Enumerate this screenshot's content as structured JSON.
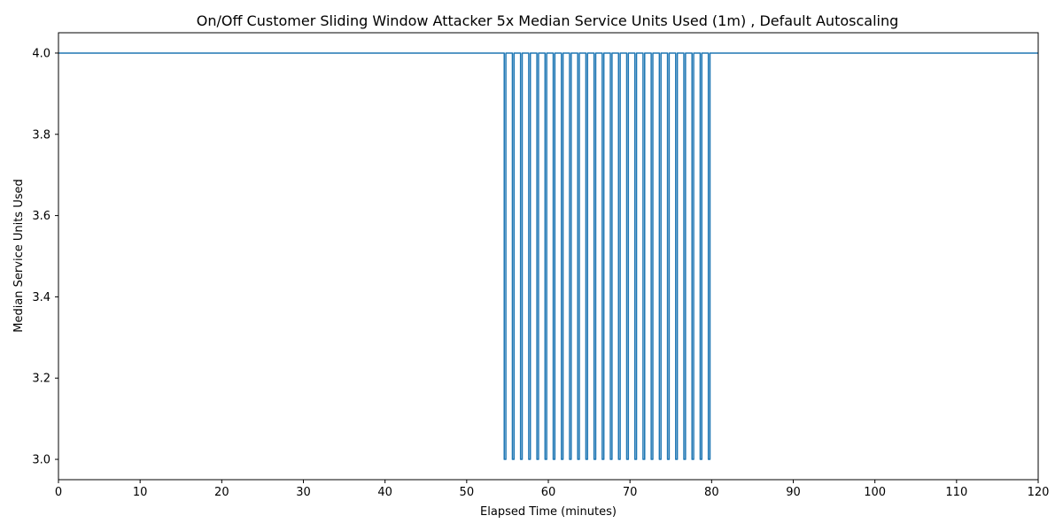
{
  "chart_data": {
    "type": "line",
    "title": "On/Off Customer Sliding Window Attacker 5x Median Service Units Used (1m) , Default Autoscaling",
    "xlabel": "Elapsed Time (minutes)",
    "ylabel": "Median Service Units Used",
    "xlim": [
      0,
      120
    ],
    "ylim": [
      2.95,
      4.05
    ],
    "xticks": [
      0,
      10,
      20,
      30,
      40,
      50,
      60,
      70,
      80,
      90,
      100,
      110,
      120
    ],
    "yticks": [
      3.0,
      3.2,
      3.4,
      3.6,
      3.8,
      4.0
    ],
    "ytick_labels": [
      "3.0",
      "3.2",
      "3.4",
      "3.6",
      "3.8",
      "4.0"
    ],
    "grid": false,
    "legend": "none",
    "series_color": "#1f77b4",
    "series": [
      {
        "x": [
          0,
          54.6,
          54.6,
          54.8,
          54.8,
          55.6,
          55.6,
          55.8,
          55.8,
          56.6,
          56.6,
          56.8,
          56.8,
          57.6,
          57.6,
          57.8,
          57.8,
          58.6,
          58.6,
          58.8,
          58.8,
          59.6,
          59.6,
          59.8,
          59.8,
          60.6,
          60.6,
          60.8,
          60.8,
          61.6,
          61.6,
          61.8,
          61.8,
          62.6,
          62.6,
          62.8,
          62.8,
          63.6,
          63.6,
          63.8,
          63.8,
          64.6,
          64.6,
          64.8,
          64.8,
          65.6,
          65.6,
          65.8,
          65.8,
          66.6,
          66.6,
          66.8,
          66.8,
          67.6,
          67.6,
          67.8,
          67.8,
          68.6,
          68.6,
          68.8,
          68.8,
          69.6,
          69.6,
          69.8,
          69.8,
          70.6,
          70.6,
          70.8,
          70.8,
          71.6,
          71.6,
          71.8,
          71.8,
          72.6,
          72.6,
          72.8,
          72.8,
          73.6,
          73.6,
          73.8,
          73.8,
          74.6,
          74.6,
          74.8,
          74.8,
          75.6,
          75.6,
          75.8,
          75.8,
          76.6,
          76.6,
          76.8,
          76.8,
          77.6,
          77.6,
          77.8,
          77.8,
          78.6,
          78.6,
          78.8,
          78.8,
          79.6,
          79.6,
          79.8,
          79.8,
          120
        ],
        "y": [
          4.0,
          4.0,
          3.0,
          3.0,
          4.0,
          4.0,
          3.0,
          3.0,
          4.0,
          4.0,
          3.0,
          3.0,
          4.0,
          4.0,
          3.0,
          3.0,
          4.0,
          4.0,
          3.0,
          3.0,
          4.0,
          4.0,
          3.0,
          3.0,
          4.0,
          4.0,
          3.0,
          3.0,
          4.0,
          4.0,
          3.0,
          3.0,
          4.0,
          4.0,
          3.0,
          3.0,
          4.0,
          4.0,
          3.0,
          3.0,
          4.0,
          4.0,
          3.0,
          3.0,
          4.0,
          4.0,
          3.0,
          3.0,
          4.0,
          4.0,
          3.0,
          3.0,
          4.0,
          4.0,
          3.0,
          3.0,
          4.0,
          4.0,
          3.0,
          3.0,
          4.0,
          4.0,
          3.0,
          3.0,
          4.0,
          4.0,
          3.0,
          3.0,
          4.0,
          4.0,
          3.0,
          3.0,
          4.0,
          4.0,
          3.0,
          3.0,
          4.0,
          4.0,
          3.0,
          3.0,
          4.0,
          4.0,
          3.0,
          3.0,
          4.0,
          4.0,
          3.0,
          3.0,
          4.0,
          4.0,
          3.0,
          3.0,
          4.0,
          4.0,
          3.0,
          3.0,
          4.0,
          4.0,
          3.0,
          3.0,
          4.0,
          4.0,
          3.0,
          3.0,
          4.0,
          4.0
        ]
      }
    ]
  }
}
